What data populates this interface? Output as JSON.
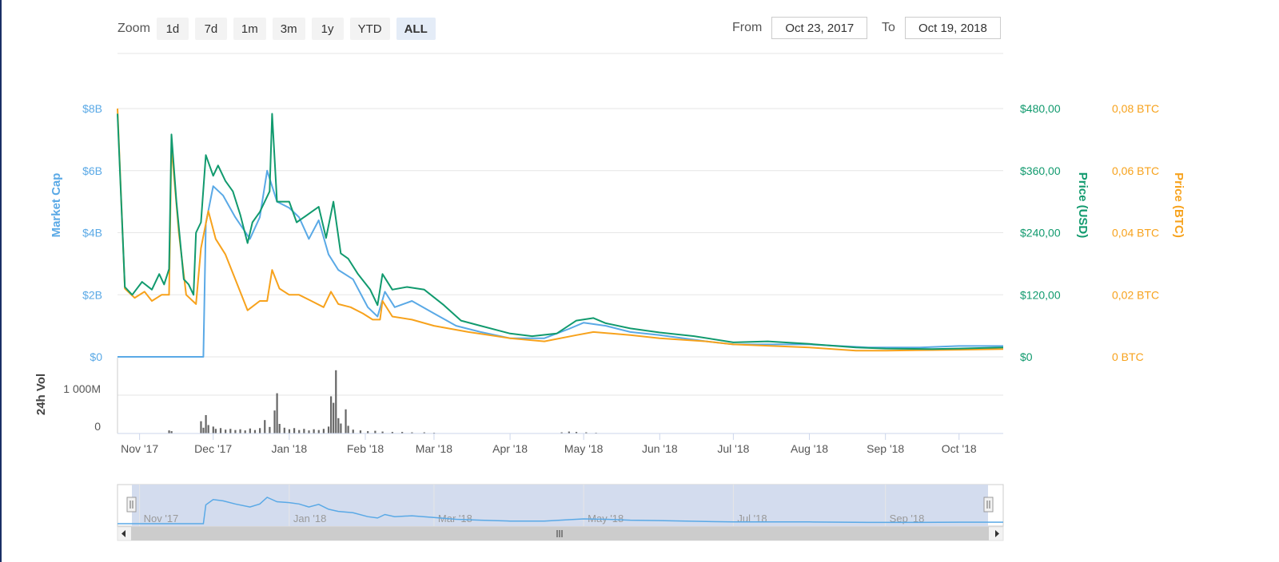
{
  "toolbar": {
    "zoom_label": "Zoom",
    "zoom_buttons": [
      "1d",
      "7d",
      "1m",
      "3m",
      "1y",
      "YTD",
      "ALL"
    ],
    "active_zoom": "ALL",
    "from_label": "From",
    "from_value": "Oct 23, 2017",
    "to_label": "To",
    "to_value": "Oct 19, 2018"
  },
  "colors": {
    "market_cap": "#5aa9e6",
    "price_usd": "#119a6e",
    "price_btc": "#f7a21c",
    "volume": "#666666",
    "navigator_fill": "#d3dcee"
  },
  "chart_data": {
    "type": "line",
    "x_start": "2017-10-23",
    "x_end": "2018-10-19",
    "x_ticks": [
      {
        "label": "Nov '17",
        "date": "2017-11-01"
      },
      {
        "label": "Dec '17",
        "date": "2017-12-01"
      },
      {
        "label": "Jan '18",
        "date": "2018-01-01"
      },
      {
        "label": "Feb '18",
        "date": "2018-02-01"
      },
      {
        "label": "Mar '18",
        "date": "2018-03-01"
      },
      {
        "label": "Apr '18",
        "date": "2018-04-01"
      },
      {
        "label": "May '18",
        "date": "2018-05-01"
      },
      {
        "label": "Jun '18",
        "date": "2018-06-01"
      },
      {
        "label": "Jul '18",
        "date": "2018-07-01"
      },
      {
        "label": "Aug '18",
        "date": "2018-08-01"
      },
      {
        "label": "Sep '18",
        "date": "2018-09-01"
      },
      {
        "label": "Oct '18",
        "date": "2018-10-01"
      }
    ],
    "axes": {
      "market_cap": {
        "title": "Market Cap",
        "ticks": [
          "$0",
          "$2B",
          "$4B",
          "$6B",
          "$8B"
        ],
        "range": [
          0,
          8
        ]
      },
      "price_usd": {
        "title": "Price (USD)",
        "ticks": [
          "$0",
          "$120,00",
          "$240,00",
          "$360,00",
          "$480,00"
        ],
        "range": [
          0,
          480
        ]
      },
      "price_btc": {
        "title": "Price (BTC)",
        "ticks": [
          "0 BTC",
          "0,02 BTC",
          "0,04 BTC",
          "0,06 BTC",
          "0,08 BTC"
        ],
        "range": [
          0,
          0.08
        ]
      },
      "volume": {
        "title": "24h Vol",
        "ticks": [
          "0",
          "1 000M"
        ],
        "range": [
          0,
          2000
        ]
      }
    },
    "series": [
      {
        "name": "Market Cap",
        "axis": "market_cap",
        "points": [
          [
            "2017-10-23",
            0
          ],
          [
            "2017-11-10",
            0
          ],
          [
            "2017-11-26",
            0
          ],
          [
            "2017-11-27",
            0
          ],
          [
            "2017-11-28",
            4.3
          ],
          [
            "2017-12-01",
            5.5
          ],
          [
            "2017-12-05",
            5.2
          ],
          [
            "2017-12-10",
            4.5
          ],
          [
            "2017-12-16",
            3.8
          ],
          [
            "2017-12-20",
            4.5
          ],
          [
            "2017-12-23",
            6.0
          ],
          [
            "2017-12-27",
            5.0
          ],
          [
            "2018-01-01",
            4.8
          ],
          [
            "2018-01-05",
            4.5
          ],
          [
            "2018-01-09",
            3.8
          ],
          [
            "2018-01-13",
            4.4
          ],
          [
            "2018-01-17",
            3.3
          ],
          [
            "2018-01-21",
            2.8
          ],
          [
            "2018-01-27",
            2.5
          ],
          [
            "2018-02-02",
            1.6
          ],
          [
            "2018-02-06",
            1.3
          ],
          [
            "2018-02-09",
            2.1
          ],
          [
            "2018-02-13",
            1.6
          ],
          [
            "2018-02-20",
            1.8
          ],
          [
            "2018-03-01",
            1.4
          ],
          [
            "2018-03-10",
            1.0
          ],
          [
            "2018-03-20",
            0.8
          ],
          [
            "2018-04-01",
            0.6
          ],
          [
            "2018-04-15",
            0.6
          ],
          [
            "2018-04-25",
            0.9
          ],
          [
            "2018-05-01",
            1.1
          ],
          [
            "2018-05-10",
            1.0
          ],
          [
            "2018-05-20",
            0.8
          ],
          [
            "2018-06-01",
            0.7
          ],
          [
            "2018-06-20",
            0.5
          ],
          [
            "2018-07-01",
            0.4
          ],
          [
            "2018-08-01",
            0.4
          ],
          [
            "2018-08-25",
            0.3
          ],
          [
            "2018-09-15",
            0.3
          ],
          [
            "2018-10-01",
            0.35
          ],
          [
            "2018-10-19",
            0.35
          ]
        ]
      },
      {
        "name": "Price (USD)",
        "axis": "price_usd",
        "points": [
          [
            "2017-10-23",
            470
          ],
          [
            "2017-10-26",
            135
          ],
          [
            "2017-10-29",
            120
          ],
          [
            "2017-11-02",
            145
          ],
          [
            "2017-11-06",
            130
          ],
          [
            "2017-11-09",
            160
          ],
          [
            "2017-11-11",
            140
          ],
          [
            "2017-11-13",
            170
          ],
          [
            "2017-11-14",
            430
          ],
          [
            "2017-11-16",
            300
          ],
          [
            "2017-11-19",
            150
          ],
          [
            "2017-11-21",
            140
          ],
          [
            "2017-11-23",
            120
          ],
          [
            "2017-11-24",
            240
          ],
          [
            "2017-11-26",
            260
          ],
          [
            "2017-11-28",
            390
          ],
          [
            "2017-12-01",
            350
          ],
          [
            "2017-12-03",
            370
          ],
          [
            "2017-12-06",
            340
          ],
          [
            "2017-12-09",
            320
          ],
          [
            "2017-12-12",
            275
          ],
          [
            "2017-12-15",
            220
          ],
          [
            "2017-12-17",
            260
          ],
          [
            "2017-12-20",
            280
          ],
          [
            "2017-12-24",
            320
          ],
          [
            "2017-12-25",
            470
          ],
          [
            "2017-12-27",
            300
          ],
          [
            "2018-01-01",
            300
          ],
          [
            "2018-01-04",
            260
          ],
          [
            "2018-01-07",
            270
          ],
          [
            "2018-01-10",
            280
          ],
          [
            "2018-01-13",
            290
          ],
          [
            "2018-01-16",
            230
          ],
          [
            "2018-01-19",
            300
          ],
          [
            "2018-01-22",
            200
          ],
          [
            "2018-01-25",
            190
          ],
          [
            "2018-01-29",
            160
          ],
          [
            "2018-02-03",
            130
          ],
          [
            "2018-02-06",
            100
          ],
          [
            "2018-02-08",
            160
          ],
          [
            "2018-02-12",
            130
          ],
          [
            "2018-02-18",
            135
          ],
          [
            "2018-02-25",
            130
          ],
          [
            "2018-03-05",
            100
          ],
          [
            "2018-03-12",
            70
          ],
          [
            "2018-03-20",
            60
          ],
          [
            "2018-04-01",
            45
          ],
          [
            "2018-04-10",
            40
          ],
          [
            "2018-04-20",
            45
          ],
          [
            "2018-04-28",
            70
          ],
          [
            "2018-05-05",
            75
          ],
          [
            "2018-05-10",
            65
          ],
          [
            "2018-05-20",
            55
          ],
          [
            "2018-06-01",
            47
          ],
          [
            "2018-06-15",
            40
          ],
          [
            "2018-07-01",
            28
          ],
          [
            "2018-07-15",
            30
          ],
          [
            "2018-08-01",
            25
          ],
          [
            "2018-08-20",
            18
          ],
          [
            "2018-09-01",
            16
          ],
          [
            "2018-09-20",
            15
          ],
          [
            "2018-10-01",
            16
          ],
          [
            "2018-10-19",
            18
          ]
        ]
      },
      {
        "name": "Price (BTC)",
        "axis": "price_btc",
        "points": [
          [
            "2017-10-23",
            0.08
          ],
          [
            "2017-10-26",
            0.022
          ],
          [
            "2017-10-30",
            0.019
          ],
          [
            "2017-11-03",
            0.021
          ],
          [
            "2017-11-06",
            0.018
          ],
          [
            "2017-11-10",
            0.02
          ],
          [
            "2017-11-13",
            0.02
          ],
          [
            "2017-11-14",
            0.068
          ],
          [
            "2017-11-17",
            0.04
          ],
          [
            "2017-11-20",
            0.02
          ],
          [
            "2017-11-24",
            0.017
          ],
          [
            "2017-11-26",
            0.035
          ],
          [
            "2017-11-29",
            0.047
          ],
          [
            "2017-12-02",
            0.038
          ],
          [
            "2017-12-06",
            0.033
          ],
          [
            "2017-12-10",
            0.025
          ],
          [
            "2017-12-15",
            0.015
          ],
          [
            "2017-12-20",
            0.018
          ],
          [
            "2017-12-23",
            0.018
          ],
          [
            "2017-12-25",
            0.028
          ],
          [
            "2017-12-28",
            0.022
          ],
          [
            "2018-01-01",
            0.02
          ],
          [
            "2018-01-05",
            0.02
          ],
          [
            "2018-01-10",
            0.018
          ],
          [
            "2018-01-15",
            0.016
          ],
          [
            "2018-01-18",
            0.021
          ],
          [
            "2018-01-21",
            0.017
          ],
          [
            "2018-01-26",
            0.016
          ],
          [
            "2018-01-31",
            0.014
          ],
          [
            "2018-02-04",
            0.012
          ],
          [
            "2018-02-07",
            0.012
          ],
          [
            "2018-02-08",
            0.018
          ],
          [
            "2018-02-12",
            0.013
          ],
          [
            "2018-02-20",
            0.012
          ],
          [
            "2018-03-01",
            0.01
          ],
          [
            "2018-03-15",
            0.008
          ],
          [
            "2018-04-01",
            0.006
          ],
          [
            "2018-04-15",
            0.005
          ],
          [
            "2018-04-28",
            0.007
          ],
          [
            "2018-05-05",
            0.008
          ],
          [
            "2018-05-20",
            0.007
          ],
          [
            "2018-06-01",
            0.006
          ],
          [
            "2018-06-20",
            0.005
          ],
          [
            "2018-07-01",
            0.004
          ],
          [
            "2018-08-01",
            0.003
          ],
          [
            "2018-08-20",
            0.002
          ],
          [
            "2018-09-01",
            0.002
          ],
          [
            "2018-10-01",
            0.0023
          ],
          [
            "2018-10-19",
            0.0025
          ]
        ]
      }
    ],
    "volume": [
      [
        "2017-11-13",
        80
      ],
      [
        "2017-11-14",
        60
      ],
      [
        "2017-11-26",
        320
      ],
      [
        "2017-11-27",
        150
      ],
      [
        "2017-11-28",
        480
      ],
      [
        "2017-11-29",
        220
      ],
      [
        "2017-12-01",
        180
      ],
      [
        "2017-12-02",
        120
      ],
      [
        "2017-12-04",
        140
      ],
      [
        "2017-12-06",
        100
      ],
      [
        "2017-12-08",
        120
      ],
      [
        "2017-12-10",
        90
      ],
      [
        "2017-12-12",
        110
      ],
      [
        "2017-12-14",
        80
      ],
      [
        "2017-12-16",
        130
      ],
      [
        "2017-12-18",
        90
      ],
      [
        "2017-12-20",
        140
      ],
      [
        "2017-12-22",
        350
      ],
      [
        "2017-12-24",
        170
      ],
      [
        "2017-12-26",
        600
      ],
      [
        "2017-12-27",
        1050
      ],
      [
        "2017-12-28",
        250
      ],
      [
        "2017-12-30",
        150
      ],
      [
        "2018-01-01",
        110
      ],
      [
        "2018-01-03",
        140
      ],
      [
        "2018-01-05",
        90
      ],
      [
        "2018-01-07",
        120
      ],
      [
        "2018-01-09",
        80
      ],
      [
        "2018-01-11",
        110
      ],
      [
        "2018-01-13",
        90
      ],
      [
        "2018-01-15",
        120
      ],
      [
        "2018-01-17",
        180
      ],
      [
        "2018-01-18",
        970
      ],
      [
        "2018-01-19",
        800
      ],
      [
        "2018-01-20",
        1650
      ],
      [
        "2018-01-21",
        400
      ],
      [
        "2018-01-22",
        260
      ],
      [
        "2018-01-24",
        630
      ],
      [
        "2018-01-25",
        200
      ],
      [
        "2018-01-27",
        100
      ],
      [
        "2018-01-30",
        80
      ],
      [
        "2018-02-02",
        60
      ],
      [
        "2018-02-05",
        70
      ],
      [
        "2018-02-08",
        50
      ],
      [
        "2018-02-12",
        40
      ],
      [
        "2018-02-16",
        40
      ],
      [
        "2018-02-20",
        30
      ],
      [
        "2018-02-25",
        30
      ],
      [
        "2018-03-01",
        20
      ],
      [
        "2018-04-22",
        30
      ],
      [
        "2018-04-25",
        50
      ],
      [
        "2018-04-28",
        40
      ],
      [
        "2018-05-02",
        30
      ],
      [
        "2018-05-06",
        20
      ]
    ]
  }
}
